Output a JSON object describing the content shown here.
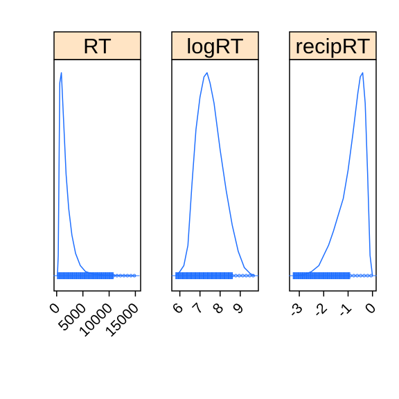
{
  "colors": {
    "strip_bg": "#ffe4c4",
    "density_line": "#1f6fff",
    "frame": "#000000",
    "background": "#ffffff"
  },
  "chart_data": [
    {
      "type": "line",
      "panel": "RT",
      "xlim": [
        -500,
        16000
      ],
      "ylim": [
        0,
        1
      ],
      "x_ticks": [
        0,
        5000,
        10000,
        15000
      ],
      "x_tick_labels": [
        "0",
        "5000",
        "10000",
        "15000"
      ],
      "rug": {
        "range": [
          150,
          15000
        ]
      },
      "series": [
        {
          "x": [
            150,
            300,
            600,
            900,
            1300,
            1800,
            2300,
            2900,
            3600,
            4500,
            5500,
            7000,
            9000,
            12000,
            15000
          ],
          "y": [
            0.0,
            0.1,
            0.95,
            1.0,
            0.78,
            0.5,
            0.33,
            0.2,
            0.11,
            0.05,
            0.02,
            0.008,
            0.003,
            0.001,
            0.0
          ]
        }
      ]
    },
    {
      "type": "line",
      "panel": "logRT",
      "xlim": [
        5.6,
        9.9
      ],
      "ylim": [
        0,
        1
      ],
      "x_ticks": [
        6,
        7,
        8,
        9
      ],
      "x_tick_labels": [
        "6",
        "7",
        "8",
        "9"
      ],
      "rug": {
        "range": [
          5.8,
          9.7
        ]
      },
      "series": [
        {
          "x": [
            5.8,
            6.0,
            6.2,
            6.4,
            6.6,
            6.8,
            7.0,
            7.2,
            7.35,
            7.5,
            7.7,
            8.0,
            8.3,
            8.6,
            8.9,
            9.2,
            9.5,
            9.7
          ],
          "y": [
            0.0,
            0.02,
            0.05,
            0.15,
            0.45,
            0.72,
            0.88,
            0.98,
            1.0,
            0.95,
            0.85,
            0.62,
            0.42,
            0.25,
            0.12,
            0.04,
            0.01,
            0.0
          ]
        }
      ]
    },
    {
      "type": "line",
      "panel": "recipRT",
      "xlim": [
        -3.4,
        0.15
      ],
      "ylim": [
        0,
        1
      ],
      "x_ticks": [
        -3,
        -2,
        -1,
        0
      ],
      "x_tick_labels": [
        "-3",
        "-2",
        "-1",
        "0"
      ],
      "rug": {
        "range": [
          -3.25,
          0.0
        ]
      },
      "series": [
        {
          "x": [
            -3.2,
            -2.8,
            -2.5,
            -2.2,
            -2.0,
            -1.8,
            -1.6,
            -1.4,
            -1.2,
            -1.0,
            -0.8,
            -0.6,
            -0.5,
            -0.4,
            -0.3,
            -0.2,
            -0.1,
            0.0
          ],
          "y": [
            0.0,
            0.005,
            0.02,
            0.05,
            0.1,
            0.15,
            0.22,
            0.3,
            0.38,
            0.52,
            0.7,
            0.9,
            0.98,
            1.0,
            0.85,
            0.5,
            0.1,
            0.0
          ]
        }
      ]
    }
  ]
}
